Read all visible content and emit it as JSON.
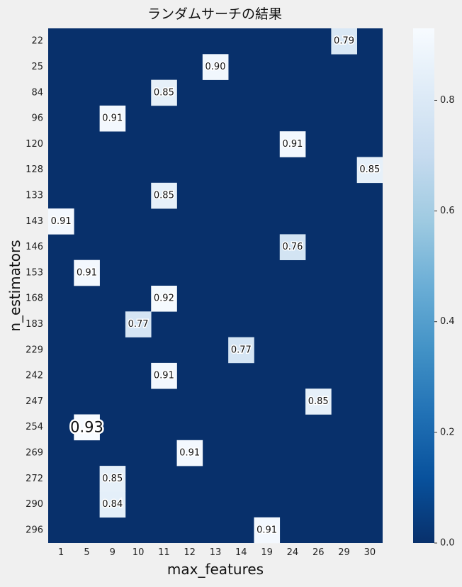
{
  "chart_data": {
    "type": "heatmap",
    "title": "ランダムサーチの結果",
    "xlabel": "max_features",
    "ylabel": "n_estimators",
    "x_categories": [
      "1",
      "5",
      "9",
      "10",
      "11",
      "12",
      "13",
      "14",
      "19",
      "24",
      "26",
      "29",
      "30"
    ],
    "y_categories": [
      "22",
      "25",
      "84",
      "96",
      "120",
      "128",
      "133",
      "143",
      "146",
      "153",
      "168",
      "183",
      "229",
      "242",
      "247",
      "254",
      "269",
      "272",
      "290",
      "296"
    ],
    "cells": [
      {
        "y": "22",
        "x": "29",
        "value": 0.79
      },
      {
        "y": "25",
        "x": "13",
        "value": 0.9
      },
      {
        "y": "84",
        "x": "11",
        "value": 0.85
      },
      {
        "y": "96",
        "x": "9",
        "value": 0.91
      },
      {
        "y": "120",
        "x": "24",
        "value": 0.91
      },
      {
        "y": "128",
        "x": "30",
        "value": 0.85
      },
      {
        "y": "133",
        "x": "11",
        "value": 0.85
      },
      {
        "y": "143",
        "x": "1",
        "value": 0.91
      },
      {
        "y": "146",
        "x": "24",
        "value": 0.76
      },
      {
        "y": "153",
        "x": "5",
        "value": 0.91
      },
      {
        "y": "168",
        "x": "11",
        "value": 0.92
      },
      {
        "y": "183",
        "x": "10",
        "value": 0.77
      },
      {
        "y": "229",
        "x": "14",
        "value": 0.77
      },
      {
        "y": "242",
        "x": "11",
        "value": 0.91
      },
      {
        "y": "247",
        "x": "26",
        "value": 0.85
      },
      {
        "y": "254",
        "x": "5",
        "value": 0.93
      },
      {
        "y": "269",
        "x": "12",
        "value": 0.91
      },
      {
        "y": "272",
        "x": "9",
        "value": 0.85
      },
      {
        "y": "290",
        "x": "9",
        "value": 0.84
      },
      {
        "y": "296",
        "x": "19",
        "value": 0.91
      }
    ],
    "empty_value": 0.0,
    "highlight_max": {
      "y": "254",
      "x": "5",
      "value": 0.93
    },
    "colorbar": {
      "colormap": "Blues",
      "range": [
        0.0,
        0.93
      ],
      "ticks": [
        "0.0",
        "0.2",
        "0.4",
        "0.6",
        "0.8"
      ]
    }
  }
}
